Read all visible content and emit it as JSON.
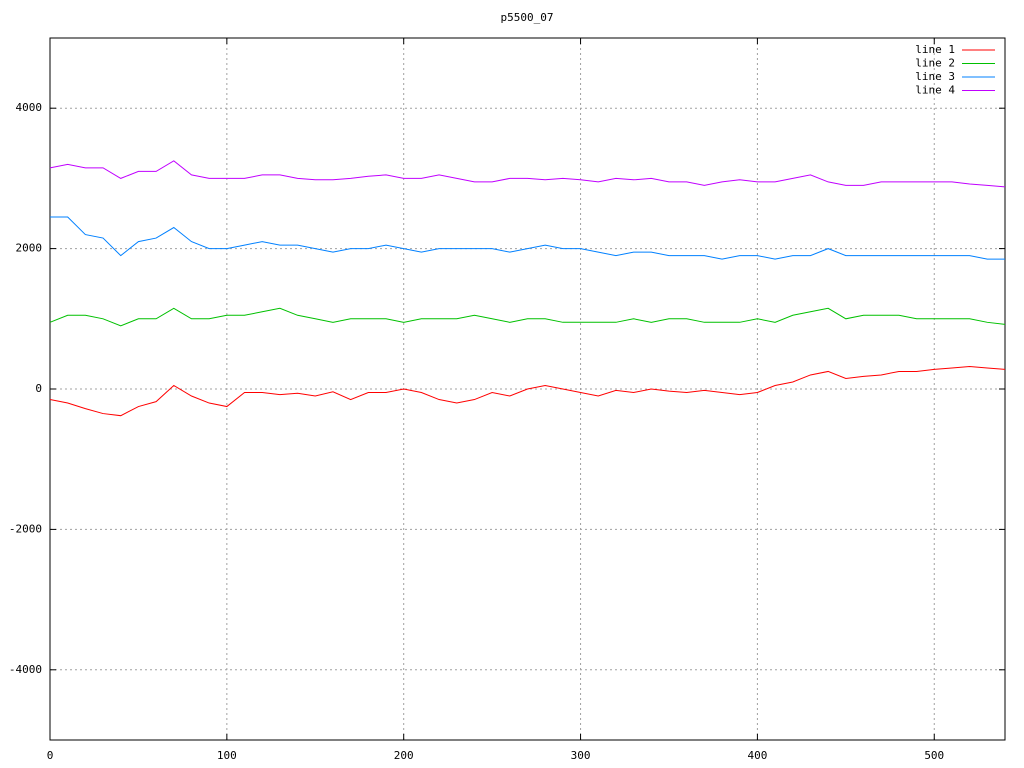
{
  "chart_data": {
    "type": "line",
    "title": "p5500_07",
    "x": [
      0,
      10,
      20,
      30,
      40,
      50,
      60,
      70,
      80,
      90,
      100,
      110,
      120,
      130,
      140,
      150,
      160,
      170,
      180,
      190,
      200,
      210,
      220,
      230,
      240,
      250,
      260,
      270,
      280,
      290,
      300,
      310,
      320,
      330,
      340,
      350,
      360,
      370,
      380,
      390,
      400,
      410,
      420,
      430,
      440,
      450,
      460,
      470,
      480,
      490,
      500,
      510,
      520,
      530,
      540
    ],
    "series": [
      {
        "name": "line 1",
        "color": "#ff0000",
        "values": [
          -150,
          -200,
          -280,
          -350,
          -380,
          -250,
          -180,
          50,
          -100,
          -200,
          -250,
          -50,
          -50,
          -80,
          -60,
          -100,
          -40,
          -150,
          -50,
          -50,
          0,
          -50,
          -150,
          -200,
          -150,
          -50,
          -100,
          0,
          50,
          0,
          -50,
          -100,
          -20,
          -50,
          0,
          -30,
          -50,
          -20,
          -50,
          -80,
          -50,
          50,
          100,
          200,
          250,
          150,
          180,
          200,
          250,
          250,
          280,
          300,
          320,
          300,
          280
        ]
      },
      {
        "name": "line 2",
        "color": "#00c000",
        "values": [
          950,
          1050,
          1050,
          1000,
          900,
          1000,
          1000,
          1150,
          1000,
          1000,
          1050,
          1050,
          1100,
          1150,
          1050,
          1000,
          950,
          1000,
          1000,
          1000,
          950,
          1000,
          1000,
          1000,
          1050,
          1000,
          950,
          1000,
          1000,
          950,
          950,
          950,
          950,
          1000,
          950,
          1000,
          1000,
          950,
          950,
          950,
          1000,
          950,
          1050,
          1100,
          1150,
          1000,
          1050,
          1050,
          1050,
          1000,
          1000,
          1000,
          1000,
          950,
          920
        ]
      },
      {
        "name": "line 3",
        "color": "#0080ff",
        "values": [
          2450,
          2450,
          2200,
          2150,
          1900,
          2100,
          2150,
          2300,
          2100,
          2000,
          2000,
          2050,
          2100,
          2050,
          2050,
          2000,
          1950,
          2000,
          2000,
          2050,
          2000,
          1950,
          2000,
          2000,
          2000,
          2000,
          1950,
          2000,
          2050,
          2000,
          2000,
          1950,
          1900,
          1950,
          1950,
          1900,
          1900,
          1900,
          1850,
          1900,
          1900,
          1850,
          1900,
          1900,
          2000,
          1900,
          1900,
          1900,
          1900,
          1900,
          1900,
          1900,
          1900,
          1850,
          1850
        ]
      },
      {
        "name": "line 4",
        "color": "#c000ff",
        "values": [
          3150,
          3200,
          3150,
          3150,
          3000,
          3100,
          3100,
          3250,
          3050,
          3000,
          3000,
          3000,
          3050,
          3050,
          3000,
          2980,
          2980,
          3000,
          3030,
          3050,
          3000,
          3000,
          3050,
          3000,
          2950,
          2950,
          3000,
          3000,
          2980,
          3000,
          2980,
          2950,
          3000,
          2980,
          3000,
          2950,
          2950,
          2900,
          2950,
          2980,
          2950,
          2950,
          3000,
          3050,
          2950,
          2900,
          2900,
          2950,
          2950,
          2950,
          2950,
          2950,
          2920,
          2900,
          2880
        ]
      }
    ],
    "xlim": [
      0,
      540
    ],
    "ylim": [
      -5000,
      5000
    ],
    "xticks": [
      0,
      100,
      200,
      300,
      400,
      500
    ],
    "yticks": [
      -4000,
      -2000,
      0,
      2000,
      4000
    ],
    "grid": true,
    "legend": "top-right"
  }
}
